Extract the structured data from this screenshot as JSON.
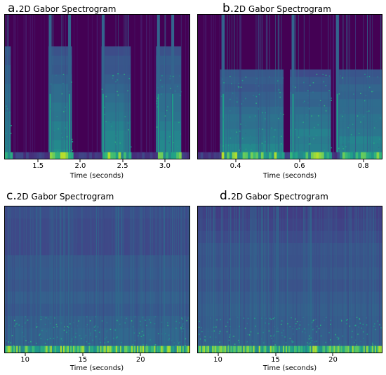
{
  "chart_data": [
    {
      "type": "heatmap",
      "panel_letter": "a.",
      "title": "2D Gabor Spectrogram",
      "xlabel": "Time (seconds)",
      "xlim": [
        1.1,
        3.3
      ],
      "xticks": [
        1.5,
        2.0,
        2.5,
        3.0
      ],
      "xtick_labels": [
        "1.5",
        "2.0",
        "2.5",
        "3.0"
      ],
      "colormap": "viridis",
      "active_segments": [
        [
          1.1,
          1.17
        ],
        [
          1.62,
          1.9
        ],
        [
          2.25,
          2.6
        ],
        [
          2.9,
          3.2
        ]
      ],
      "bright_columns": [
        1.64,
        1.87,
        2.27,
        2.93,
        3.1
      ]
    },
    {
      "type": "heatmap",
      "panel_letter": "b.",
      "title": "2D Gabor Spectrogram",
      "xlabel": "Time (seconds)",
      "xlim": [
        0.28,
        0.86
      ],
      "xticks": [
        0.4,
        0.6,
        0.8
      ],
      "xtick_labels": [
        "0.4",
        "0.6",
        "0.8"
      ],
      "colormap": "viridis",
      "active_segments": [
        [
          0.35,
          0.55
        ],
        [
          0.57,
          0.7
        ],
        [
          0.72,
          0.86
        ]
      ],
      "bright_columns": [
        0.36,
        0.58,
        0.72
      ]
    },
    {
      "type": "heatmap",
      "panel_letter": "c.",
      "title": "2D Gabor Spectrogram",
      "xlabel": "Time (seconds)",
      "xlim": [
        8.2,
        24.3
      ],
      "xticks": [
        10,
        15,
        20
      ],
      "xtick_labels": [
        "10",
        "15",
        "20"
      ],
      "colormap": "viridis",
      "active_segments": [
        [
          8.2,
          24.3
        ]
      ]
    },
    {
      "type": "heatmap",
      "panel_letter": "d.",
      "title": "2D Gabor Spectrogram",
      "xlabel": "Time (seconds)",
      "xlim": [
        8.2,
        24.3
      ],
      "xticks": [
        10,
        15,
        20
      ],
      "xtick_labels": [
        "10",
        "15",
        "20"
      ],
      "colormap": "viridis",
      "active_segments": [
        [
          8.2,
          24.3
        ]
      ]
    }
  ]
}
